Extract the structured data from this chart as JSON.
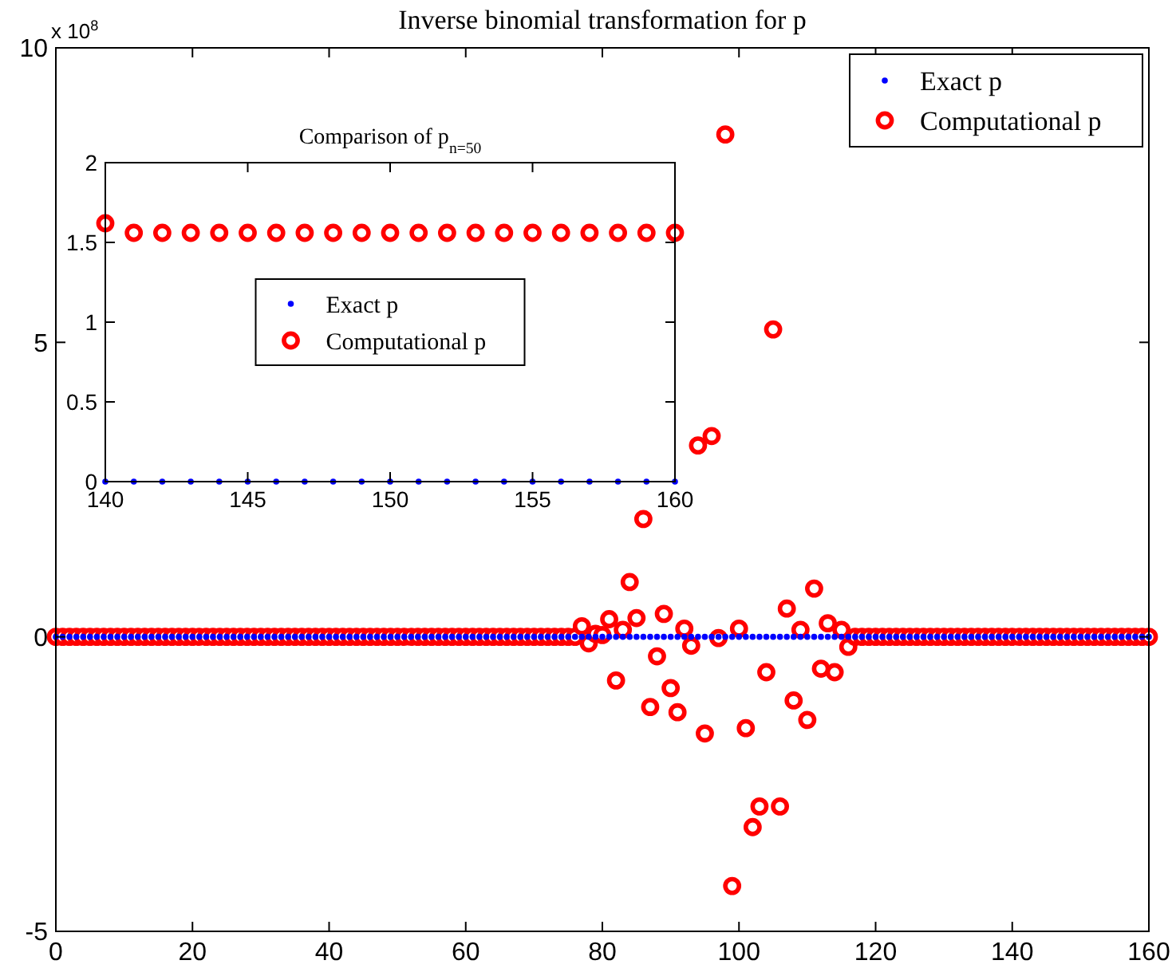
{
  "chart_data": [
    {
      "type": "scatter",
      "title": "Inverse binomial transformation for p",
      "annotations": [
        "x 10$^{8}$"
      ],
      "x": [
        0,
        1,
        2,
        3,
        4,
        5,
        6,
        7,
        8,
        9,
        10,
        11,
        12,
        13,
        14,
        15,
        16,
        17,
        18,
        19,
        20,
        21,
        22,
        23,
        24,
        25,
        26,
        27,
        28,
        29,
        30,
        31,
        32,
        33,
        34,
        35,
        36,
        37,
        38,
        39,
        40,
        41,
        42,
        43,
        44,
        45,
        46,
        47,
        48,
        49,
        50,
        51,
        52,
        53,
        54,
        55,
        56,
        57,
        58,
        59,
        60,
        61,
        62,
        63,
        64,
        65,
        66,
        67,
        68,
        69,
        70,
        71,
        72,
        73,
        74,
        75,
        76,
        77,
        78,
        79,
        80,
        81,
        82,
        83,
        84,
        85,
        86,
        87,
        88,
        89,
        90,
        91,
        92,
        93,
        94,
        95,
        96,
        97,
        98,
        99,
        100,
        101,
        102,
        103,
        104,
        105,
        106,
        107,
        108,
        109,
        110,
        111,
        112,
        113,
        114,
        115,
        116,
        117,
        118,
        119,
        120,
        121,
        122,
        123,
        124,
        125,
        126,
        127,
        128,
        129,
        130,
        131,
        132,
        133,
        134,
        135,
        136,
        137,
        138,
        139,
        140,
        141,
        142,
        143,
        144,
        145,
        146,
        147,
        148,
        149,
        150,
        151,
        152,
        153,
        154,
        155,
        156,
        157,
        158,
        159,
        160
      ],
      "series": [
        {
          "name": "Exact p",
          "color": "#0000ff",
          "marker": "circle",
          "values": [
            0,
            0,
            0,
            0,
            0,
            0,
            0,
            0,
            0,
            0,
            0,
            0,
            0,
            0,
            0,
            0,
            0,
            0,
            0,
            0,
            0,
            0,
            0,
            0,
            0,
            0,
            0,
            0,
            0,
            0,
            0,
            0,
            0,
            0,
            0,
            0,
            0,
            0,
            0,
            0,
            0,
            0,
            0,
            0,
            0,
            0,
            0,
            0,
            0,
            0,
            0,
            0,
            0,
            0,
            0,
            0,
            0,
            0,
            0,
            0,
            0,
            0,
            0,
            0,
            0,
            0,
            0,
            0,
            0,
            0,
            0,
            0,
            0,
            0,
            0,
            0,
            0,
            0,
            0,
            0,
            0,
            0,
            0,
            0,
            0,
            0,
            0,
            0,
            0,
            0,
            0,
            0,
            0,
            0,
            0,
            0,
            0,
            0,
            0,
            0,
            0,
            0,
            0,
            0,
            0,
            0,
            0,
            0,
            0,
            0,
            0,
            0,
            0,
            0,
            0,
            0,
            0,
            0,
            0,
            0,
            0,
            0,
            0,
            0,
            0,
            0,
            0,
            0,
            0,
            0,
            0,
            0,
            0,
            0,
            0,
            0,
            0,
            0,
            0,
            0,
            0,
            0,
            0,
            0,
            0,
            0,
            0,
            0,
            0,
            0,
            0,
            0,
            0,
            0,
            0,
            0,
            0,
            0,
            0,
            0,
            0
          ]
        },
        {
          "name": "Computational p",
          "color": "#ff0000",
          "marker": "circle",
          "values": [
            0,
            0,
            0,
            0,
            0,
            0,
            0,
            0,
            0,
            0,
            0,
            0,
            0,
            0,
            0,
            0,
            0,
            0,
            0,
            0,
            0,
            0,
            0,
            0,
            0,
            0,
            0,
            0,
            0,
            0,
            0,
            0,
            0,
            0,
            0,
            0,
            0,
            0,
            0,
            0,
            0,
            0,
            0,
            0,
            0,
            0,
            0,
            0,
            0,
            0,
            0,
            0,
            0,
            0,
            0,
            0,
            0,
            0,
            0,
            0,
            0,
            0,
            0,
            0,
            0,
            0,
            0,
            0,
            0,
            0,
            0,
            0,
            0,
            0,
            0,
            0,
            0,
            0.18,
            -0.11,
            0.05,
            0.03,
            0.3,
            -0.74,
            0.12,
            0.93,
            0.32,
            2.0,
            -1.19,
            -0.33,
            0.39,
            -0.87,
            -1.28,
            0.14,
            -0.15,
            3.25,
            -1.64,
            3.41,
            -0.02,
            8.53,
            -4.23,
            0.14,
            -1.55,
            -3.23,
            -2.88,
            -0.6,
            5.22,
            -2.88,
            0.48,
            -1.08,
            0.12,
            -1.41,
            0.82,
            -0.54,
            0.23,
            -0.6,
            0.12,
            -0.17,
            0,
            0,
            0,
            0,
            0,
            0,
            0,
            0,
            0,
            0,
            0,
            0,
            0,
            0,
            0,
            0,
            0,
            0,
            0,
            0,
            0,
            0,
            0,
            0,
            0,
            0,
            0,
            0,
            0,
            0,
            0,
            0,
            0,
            0,
            0,
            0,
            0,
            0,
            0,
            0,
            0,
            0,
            0,
            0
          ]
        }
      ],
      "xlim": [
        0,
        160
      ],
      "xticks": [
        0,
        20,
        40,
        60,
        80,
        100,
        120,
        140,
        160
      ],
      "ylim": [
        -5,
        10
      ],
      "yticks": [
        -5,
        0,
        5,
        10
      ],
      "legend": "top right"
    },
    {
      "type": "scatter",
      "title": "Comparison of p$_{n=50}$",
      "x": [
        140,
        141,
        142,
        143,
        144,
        145,
        146,
        147,
        148,
        149,
        150,
        151,
        152,
        153,
        154,
        155,
        156,
        157,
        158,
        159,
        160
      ],
      "series": [
        {
          "name": "Exact p",
          "color": "#0000ff",
          "marker": "circle",
          "values": [
            0,
            0,
            0,
            0,
            0,
            0,
            0,
            0,
            0,
            0,
            0,
            0,
            0,
            0,
            0,
            0,
            0,
            0,
            0,
            0,
            0
          ]
        },
        {
          "name": "Computational p",
          "color": "#ff0000",
          "marker": "circle",
          "values": [
            1.62,
            1.56,
            1.56,
            1.56,
            1.56,
            1.56,
            1.56,
            1.56,
            1.56,
            1.56,
            1.56,
            1.56,
            1.56,
            1.56,
            1.56,
            1.56,
            1.56,
            1.56,
            1.56,
            1.56,
            1.56
          ]
        }
      ],
      "xlim": [
        140,
        160
      ],
      "xticks": [
        140,
        145,
        150,
        155,
        160
      ],
      "ylim": [
        0,
        2
      ],
      "yticks": [
        0,
        0.5,
        1,
        1.5,
        2
      ],
      "legend": "center"
    }
  ]
}
